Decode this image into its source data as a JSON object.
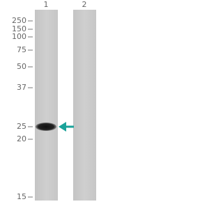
{
  "lanes": [
    "1",
    "2"
  ],
  "markers": [
    "250",
    "150",
    "100",
    "75",
    "50",
    "37",
    "25",
    "20",
    "15"
  ]
}
